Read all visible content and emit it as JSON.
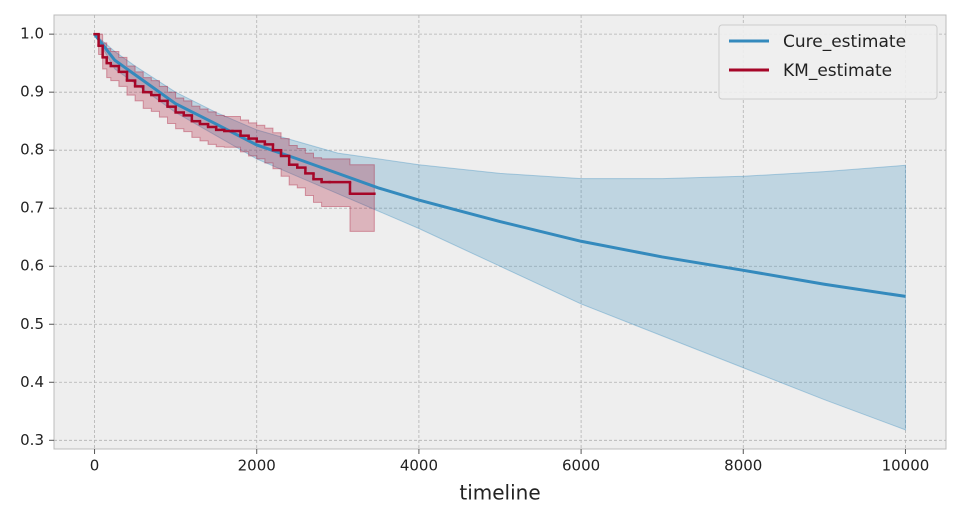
{
  "chart_data": {
    "type": "line",
    "xlabel": "timeline",
    "xlim": [
      -500,
      10500
    ],
    "ylim": [
      0.285,
      1.033
    ],
    "xticks": [
      0,
      2000,
      4000,
      6000,
      8000,
      10000
    ],
    "yticks": [
      0.3,
      0.4,
      0.5,
      0.6,
      0.7,
      0.8,
      0.9,
      {
        "value": 1,
        "label": "1.0"
      }
    ],
    "grid": true,
    "legend": "upper right",
    "series": [
      {
        "name": "Cure_estimate",
        "color": "#348ABD",
        "step": false,
        "x": [
          0,
          250,
          500,
          1000,
          1500,
          2000,
          2500,
          3000,
          3500,
          4000,
          5000,
          6000,
          7000,
          8000,
          9000,
          10000
        ],
        "values": [
          1.0,
          0.955,
          0.93,
          0.88,
          0.845,
          0.809,
          0.785,
          0.76,
          0.735,
          0.714,
          0.677,
          0.643,
          0.616,
          0.593,
          0.569,
          0.548
        ],
        "ci_upper": [
          1.0,
          0.97,
          0.945,
          0.9,
          0.865,
          0.835,
          0.815,
          0.795,
          0.785,
          0.775,
          0.76,
          0.751,
          0.751,
          0.755,
          0.763,
          0.774
        ],
        "ci_lower": [
          1.0,
          0.94,
          0.915,
          0.865,
          0.825,
          0.785,
          0.755,
          0.725,
          0.695,
          0.665,
          0.6,
          0.535,
          0.48,
          0.425,
          0.37,
          0.318
        ]
      },
      {
        "name": "KM_estimate",
        "color": "#A60628",
        "step": true,
        "x": [
          0,
          50,
          100,
          150,
          200,
          300,
          400,
          500,
          600,
          700,
          800,
          900,
          1000,
          1100,
          1200,
          1300,
          1400,
          1500,
          1600,
          1700,
          1800,
          1900,
          2000,
          2100,
          2200,
          2300,
          2400,
          2500,
          2600,
          2700,
          2800,
          2900,
          3150,
          3450
        ],
        "values": [
          1.0,
          0.98,
          0.96,
          0.95,
          0.945,
          0.935,
          0.92,
          0.91,
          0.9,
          0.895,
          0.885,
          0.875,
          0.865,
          0.86,
          0.85,
          0.845,
          0.84,
          0.835,
          0.833,
          0.833,
          0.825,
          0.82,
          0.815,
          0.81,
          0.8,
          0.79,
          0.775,
          0.77,
          0.76,
          0.75,
          0.745,
          0.745,
          0.725,
          0.725
        ],
        "ci_upper": [
          1.0,
          1.0,
          0.985,
          0.975,
          0.97,
          0.96,
          0.945,
          0.935,
          0.925,
          0.92,
          0.91,
          0.9,
          0.89,
          0.885,
          0.876,
          0.871,
          0.866,
          0.86,
          0.858,
          0.858,
          0.852,
          0.847,
          0.843,
          0.838,
          0.83,
          0.82,
          0.808,
          0.803,
          0.795,
          0.787,
          0.785,
          0.785,
          0.775,
          0.775
        ],
        "ci_lower": [
          1.0,
          0.965,
          0.94,
          0.925,
          0.92,
          0.91,
          0.895,
          0.885,
          0.872,
          0.867,
          0.857,
          0.846,
          0.837,
          0.832,
          0.822,
          0.816,
          0.81,
          0.806,
          0.805,
          0.805,
          0.797,
          0.79,
          0.785,
          0.778,
          0.768,
          0.755,
          0.74,
          0.735,
          0.722,
          0.71,
          0.703,
          0.703,
          0.66,
          0.66
        ]
      }
    ]
  }
}
